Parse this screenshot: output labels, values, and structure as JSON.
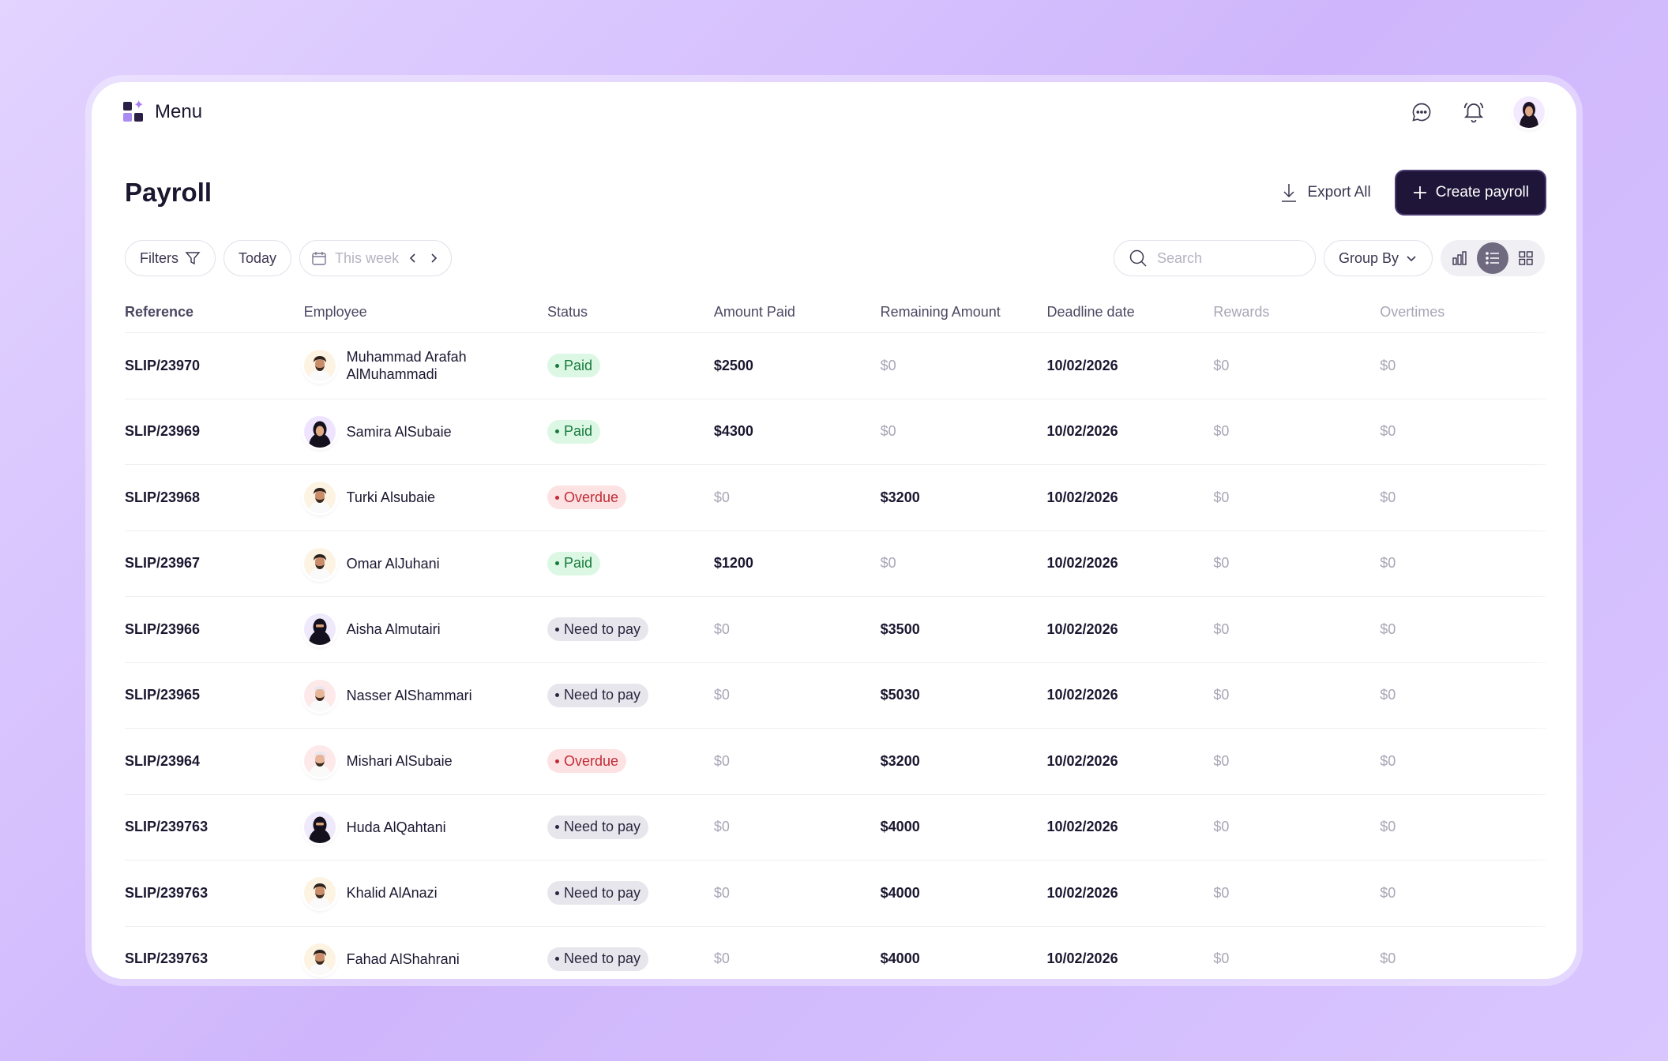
{
  "topbar": {
    "menu_label": "Menu"
  },
  "page": {
    "title": "Payroll"
  },
  "actions": {
    "export_label": "Export All",
    "create_label": "Create payroll"
  },
  "toolbar": {
    "filters_label": "Filters",
    "today_label": "Today",
    "week_label": "This week",
    "search_placeholder": "Search",
    "group_by_label": "Group By"
  },
  "table": {
    "columns": [
      "Reference",
      "Employee",
      "Status",
      "Amount Paid",
      "Remaining Amount",
      "Deadline date",
      "Rewards",
      "Overtimes"
    ],
    "rows": [
      {
        "ref": "SLIP/23970",
        "name": "Muhammad Arafah AlMuhammadi",
        "status": "Paid",
        "status_type": "paid",
        "paid": "$2500",
        "remaining": "$0",
        "deadline": "10/02/2026",
        "rewards": "$0",
        "overtimes": "$0",
        "avatar": "male"
      },
      {
        "ref": "SLIP/23969",
        "name": "Samira AlSubaie",
        "status": "Paid",
        "status_type": "paid",
        "paid": "$4300",
        "remaining": "$0",
        "deadline": "10/02/2026",
        "rewards": "$0",
        "overtimes": "$0",
        "avatar": "female"
      },
      {
        "ref": "SLIP/23968",
        "name": "Turki Alsubaie",
        "status": "Overdue",
        "status_type": "overdue",
        "paid": "$0",
        "remaining": "$3200",
        "deadline": "10/02/2026",
        "rewards": "$0",
        "overtimes": "$0",
        "avatar": "male"
      },
      {
        "ref": "SLIP/23967",
        "name": "Omar AlJuhani",
        "status": "Paid",
        "status_type": "paid",
        "paid": "$1200",
        "remaining": "$0",
        "deadline": "10/02/2026",
        "rewards": "$0",
        "overtimes": "$0",
        "avatar": "male"
      },
      {
        "ref": "SLIP/23966",
        "name": "Aisha Almutairi",
        "status": "Need to pay",
        "status_type": "need",
        "paid": "$0",
        "remaining": "$3500",
        "deadline": "10/02/2026",
        "rewards": "$0",
        "overtimes": "$0",
        "avatar": "female-veil"
      },
      {
        "ref": "SLIP/23965",
        "name": "Nasser AlShammari",
        "status": "Need to pay",
        "status_type": "need",
        "paid": "$0",
        "remaining": "$5030",
        "deadline": "10/02/2026",
        "rewards": "$0",
        "overtimes": "$0",
        "avatar": "male-light"
      },
      {
        "ref": "SLIP/23964",
        "name": "Mishari AlSubaie",
        "status": "Overdue",
        "status_type": "overdue",
        "paid": "$0",
        "remaining": "$3200",
        "deadline": "10/02/2026",
        "rewards": "$0",
        "overtimes": "$0",
        "avatar": "male-light"
      },
      {
        "ref": "SLIP/239763",
        "name": "Huda AlQahtani",
        "status": "Need to pay",
        "status_type": "need",
        "paid": "$0",
        "remaining": "$4000",
        "deadline": "10/02/2026",
        "rewards": "$0",
        "overtimes": "$0",
        "avatar": "female-veil"
      },
      {
        "ref": "SLIP/239763",
        "name": "Khalid AlAnazi",
        "status": "Need to pay",
        "status_type": "need",
        "paid": "$0",
        "remaining": "$4000",
        "deadline": "10/02/2026",
        "rewards": "$0",
        "overtimes": "$0",
        "avatar": "male"
      },
      {
        "ref": "SLIP/239763",
        "name": "Fahad AlShahrani",
        "status": "Need to pay",
        "status_type": "need",
        "paid": "$0",
        "remaining": "$4000",
        "deadline": "10/02/2026",
        "rewards": "$0",
        "overtimes": "$0",
        "avatar": "male"
      }
    ]
  },
  "colors": {
    "accent_dark": "#1e1538",
    "paid_bg": "#dcf8e4",
    "overdue_bg": "#fde2e3",
    "need_bg": "#e7e6ec"
  },
  "icons": [
    "grid-logo-icon",
    "chat-icon",
    "bell-icon",
    "download-icon",
    "plus-icon",
    "filter-icon",
    "calendar-icon",
    "chevron-left-icon",
    "chevron-right-icon",
    "search-icon",
    "chevron-down-icon",
    "bar-chart-icon",
    "list-icon",
    "grid-icon"
  ]
}
